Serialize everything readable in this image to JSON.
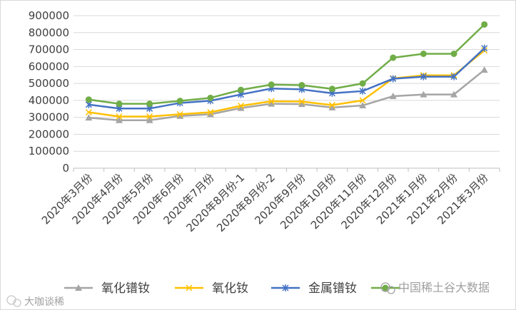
{
  "chart_data": {
    "type": "line",
    "title": "",
    "xlabel": "",
    "ylabel": "",
    "ylim": [
      0,
      900000
    ],
    "ytick_step": 100000,
    "grid": true,
    "legend_position": "bottom",
    "categories": [
      "2020年3月份",
      "2020年4月份",
      "2020年5月份",
      "2020年6月份",
      "2020年7月份",
      "2020年8月份-1",
      "2020年8月份-2",
      "2020年9月份",
      "2020年10月份",
      "2020年11月份",
      "2020年12月份",
      "2021年1月份",
      "2021年2月份",
      "2021年3月份"
    ],
    "series": [
      {
        "name": "氧化镨钕",
        "color": "#a5a5a5",
        "marker": "triangle",
        "values": [
          298000,
          283000,
          283000,
          308000,
          318000,
          355000,
          380000,
          378000,
          358000,
          370000,
          425000,
          435000,
          435000,
          580000
        ]
      },
      {
        "name": "氧化钕",
        "color": "#ffc000",
        "marker": "x",
        "values": [
          330000,
          305000,
          305000,
          318000,
          330000,
          368000,
          395000,
          393000,
          372000,
          400000,
          530000,
          548000,
          548000,
          695000
        ]
      },
      {
        "name": "金属镨钕",
        "color": "#4472c4",
        "marker": "star",
        "values": [
          375000,
          352000,
          352000,
          385000,
          398000,
          435000,
          470000,
          465000,
          442000,
          455000,
          528000,
          540000,
          540000,
          708000
        ]
      },
      {
        "name": "",
        "color": "#70ad47",
        "marker": "circle",
        "values": [
          405000,
          380000,
          380000,
          397000,
          415000,
          462000,
          493000,
          490000,
          468000,
          500000,
          652000,
          675000,
          675000,
          848000
        ]
      }
    ]
  },
  "watermark_right": "中国稀土",
  "watermark_right_2": "谷大数据",
  "watermark_left": "大咖谈稀"
}
